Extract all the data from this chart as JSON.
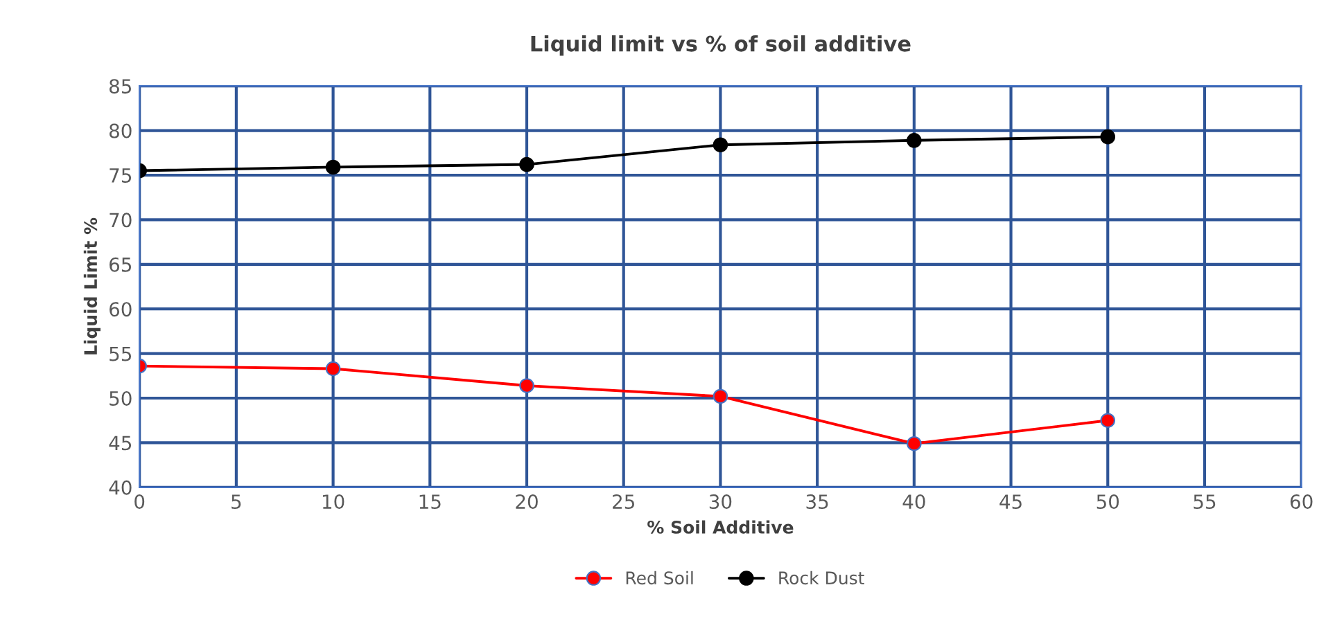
{
  "chart_data": {
    "type": "line",
    "title": "Liquid limit vs % of soil additive",
    "xlabel": "% Soil Additive",
    "ylabel": "Liquid Limit %",
    "x": [
      0,
      10,
      20,
      30,
      40,
      50
    ],
    "series": [
      {
        "name": "Red Soil",
        "color": "#ff0000",
        "values": [
          53.6,
          53.3,
          51.4,
          50.2,
          44.9,
          47.5
        ]
      },
      {
        "name": "Rock Dust",
        "color": "#000000",
        "values": [
          75.5,
          75.9,
          76.2,
          78.4,
          78.9,
          79.3
        ]
      }
    ],
    "xlim": [
      0,
      60
    ],
    "xticks": [
      0,
      5,
      10,
      15,
      20,
      25,
      30,
      35,
      40,
      45,
      50,
      55,
      60
    ],
    "ylim": [
      40,
      85
    ],
    "yticks": [
      40,
      45,
      50,
      55,
      60,
      65,
      70,
      75,
      80,
      85
    ],
    "grid": true,
    "legend": "bottom",
    "marker": "circle",
    "line_style": "solid"
  }
}
